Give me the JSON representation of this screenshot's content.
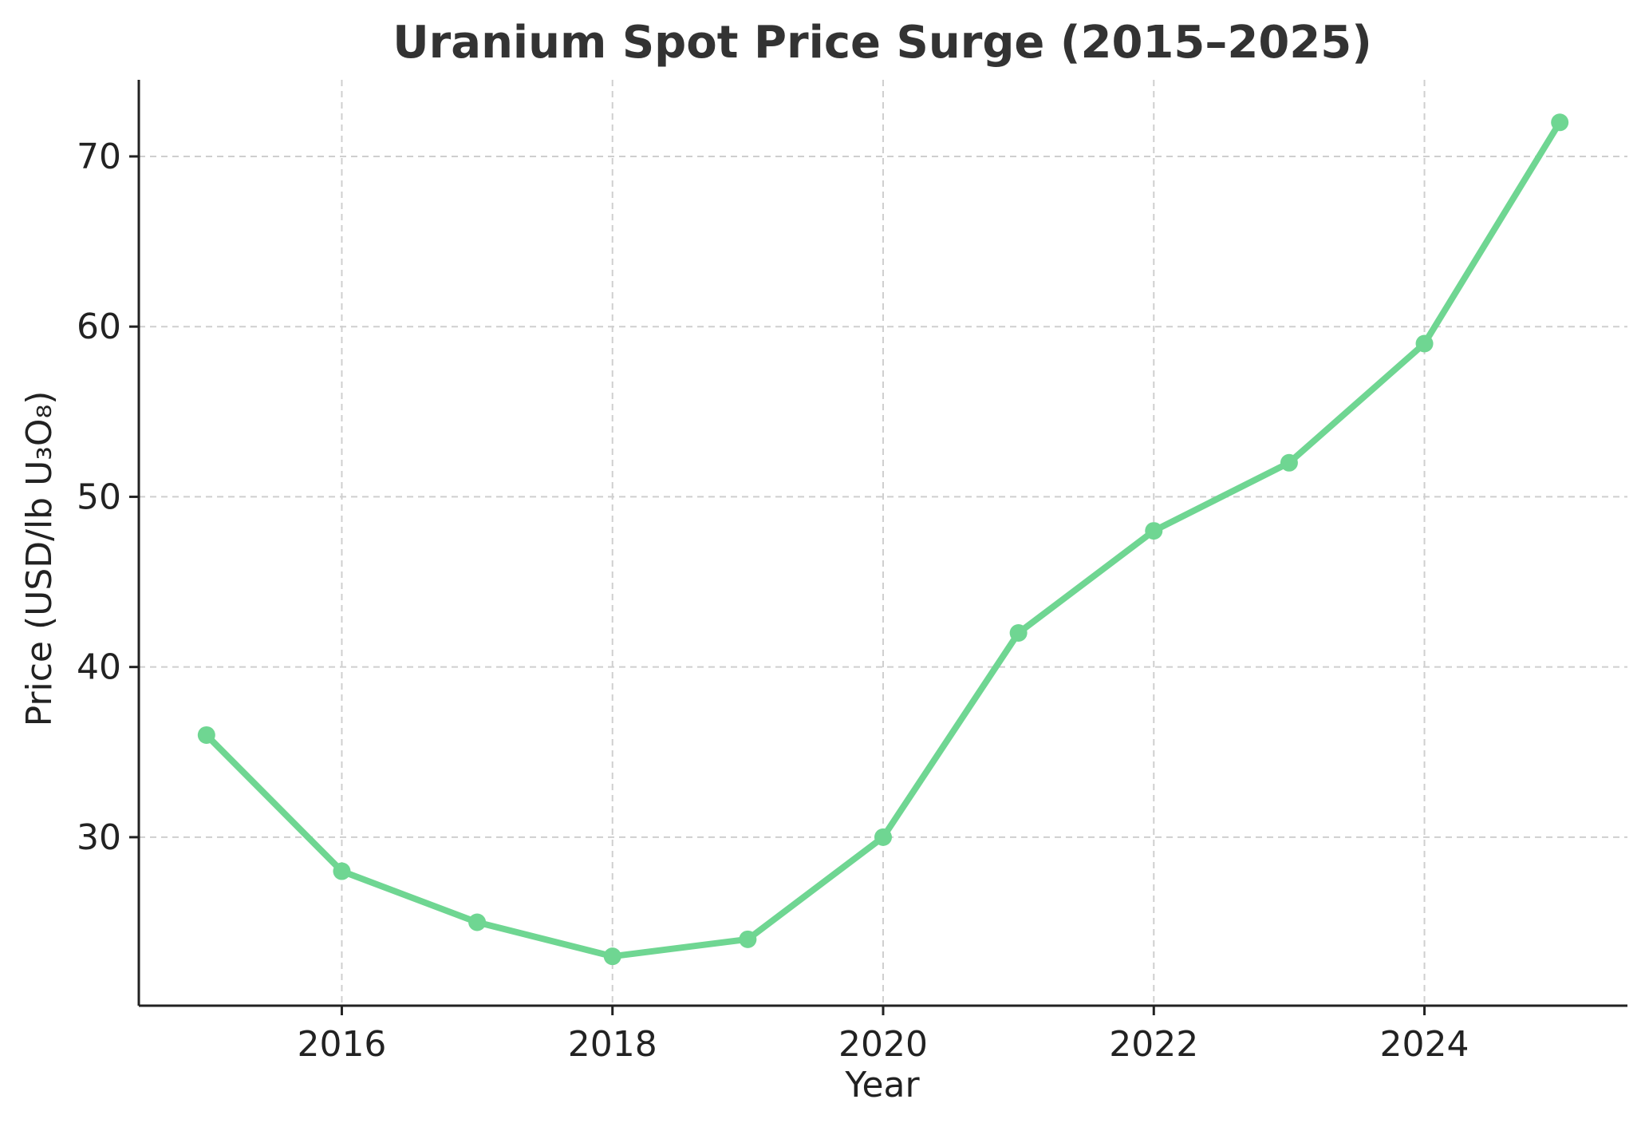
{
  "chart_data": {
    "type": "line",
    "title": "Uranium Spot Price Surge (2015–2025)",
    "xlabel": "Year",
    "ylabel": "Price (USD/lb U₃O₈)",
    "x": [
      2015,
      2016,
      2017,
      2018,
      2019,
      2020,
      2021,
      2022,
      2023,
      2024,
      2025
    ],
    "series": [
      {
        "values": [
          36,
          28,
          25,
          23,
          24,
          30,
          42,
          48,
          52,
          59,
          72
        ],
        "color": "#6fd692"
      }
    ],
    "xticks": [
      2016,
      2018,
      2020,
      2022,
      2024
    ],
    "yticks": [
      30,
      40,
      50,
      60,
      70
    ],
    "xlim": [
      2014.5,
      2025.5
    ],
    "ylim": [
      20.1,
      74.5
    ],
    "grid": true,
    "legend": "none"
  }
}
